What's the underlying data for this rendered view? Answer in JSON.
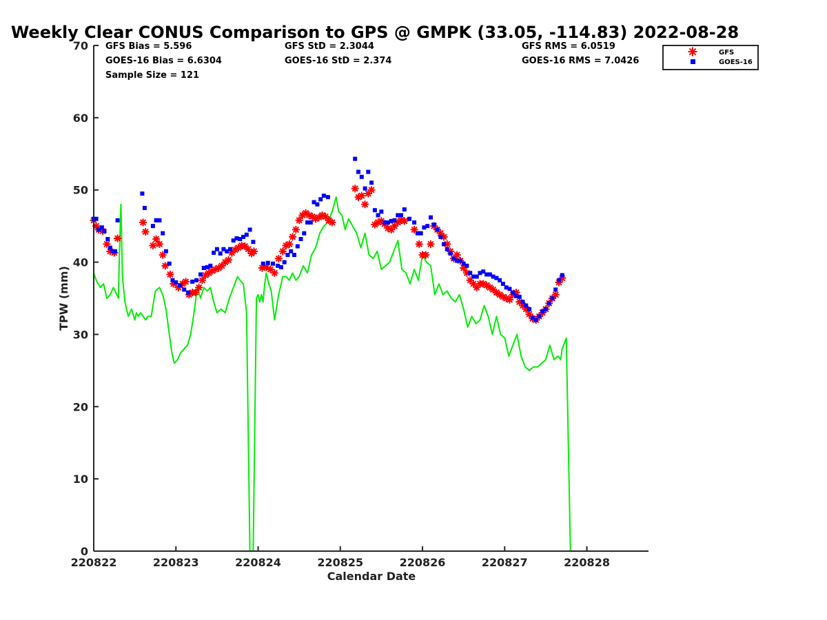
{
  "colors": {
    "gfs": "#ff0000",
    "goes": "#0000ff",
    "gps": "#00ee00",
    "axis": "#262626"
  },
  "chart_data": {
    "type": "scatter",
    "title": "Weekly Clear CONUS Comparison to GPS @ GMPK (33.05, -114.83) 2022-08-28",
    "xlabel": "Calendar Date",
    "ylabel": "TPW (mm)",
    "xlim": [
      0,
      6.75
    ],
    "ylim": [
      0,
      70
    ],
    "x_ticks": [
      0,
      1,
      2,
      3,
      4,
      5,
      6
    ],
    "x_tick_labels": [
      "220822",
      "220823",
      "220824",
      "220825",
      "220826",
      "220827",
      "220828"
    ],
    "y_ticks": [
      0,
      10,
      20,
      30,
      40,
      50,
      60,
      70
    ],
    "y_tick_labels": [
      "0",
      "10",
      "20",
      "30",
      "40",
      "50",
      "60",
      "70"
    ],
    "legend": {
      "position": "top-right",
      "entries": [
        "GFS",
        "GOES-16"
      ]
    },
    "stats": {
      "gfs_bias": "GFS Bias = 5.596",
      "goes_bias": "GOES-16 Bias = 6.6304",
      "sample_size": "Sample Size = 121",
      "gfs_std": "GFS StD = 2.3044",
      "goes_std": "GOES-16 StD = 2.374",
      "gfs_rms": "GFS RMS = 6.0519",
      "goes_rms": "GOES-16 RMS = 7.0426"
    },
    "series": [
      {
        "name": "GPS",
        "style": "line",
        "x": [
          0,
          0.03,
          0.08,
          0.12,
          0.16,
          0.2,
          0.24,
          0.28,
          0.3,
          0.31,
          0.33,
          0.35,
          0.38,
          0.42,
          0.46,
          0.5,
          0.52,
          0.54,
          0.57,
          0.6,
          0.63,
          0.66,
          0.7,
          0.75,
          0.8,
          0.84,
          0.88,
          0.92,
          0.95,
          0.98,
          1.02,
          1.06,
          1.1,
          1.14,
          1.18,
          1.22,
          1.26,
          1.3,
          1.34,
          1.38,
          1.42,
          1.46,
          1.5,
          1.55,
          1.6,
          1.65,
          1.7,
          1.75,
          1.78,
          1.82,
          1.86,
          1.9,
          1.94,
          1.98,
          2.0,
          2.02,
          2.04,
          2.06,
          2.08,
          2.1,
          2.13,
          2.16,
          2.2,
          2.25,
          2.3,
          2.34,
          2.38,
          2.42,
          2.46,
          2.5,
          2.55,
          2.6,
          2.65,
          2.7,
          2.75,
          2.8,
          2.85,
          2.9,
          2.95,
          2.98,
          3.02,
          3.06,
          3.1,
          3.15,
          3.2,
          3.25,
          3.3,
          3.35,
          3.4,
          3.45,
          3.5,
          3.55,
          3.6,
          3.65,
          3.7,
          3.75,
          3.8,
          3.85,
          3.9,
          3.95,
          4.0,
          4.05,
          4.1,
          4.15,
          4.2,
          4.25,
          4.3,
          4.35,
          4.4,
          4.45,
          4.5,
          4.55,
          4.6,
          4.65,
          4.7,
          4.75,
          4.8,
          4.85,
          4.9,
          4.95,
          5.0,
          5.05,
          5.1,
          5.15,
          5.2,
          5.25,
          5.3,
          5.35,
          5.4,
          5.45,
          5.5,
          5.55,
          5.6,
          5.65,
          5.68,
          5.7,
          5.75,
          5.8
        ],
        "y": [
          38.5,
          37.5,
          36.5,
          37,
          35,
          35.5,
          36.5,
          35.5,
          35,
          40,
          48,
          38,
          34.5,
          32.5,
          33.5,
          32,
          33,
          32.5,
          33,
          32.5,
          32,
          32.5,
          32.5,
          36,
          36.5,
          35.5,
          33.5,
          30,
          27.5,
          26,
          26.5,
          27.5,
          28,
          28.5,
          30,
          33,
          36.5,
          35,
          36.5,
          36,
          36.5,
          34.5,
          33,
          33.5,
          33,
          35,
          36.5,
          38,
          37.5,
          37,
          33,
          0,
          0,
          35,
          35.5,
          34.5,
          35.5,
          34.5,
          37,
          38.5,
          37,
          36,
          32,
          35.5,
          38,
          38,
          37.5,
          38.5,
          37.5,
          38,
          39.5,
          38.5,
          41,
          42,
          44,
          45,
          45.5,
          47,
          49,
          47,
          46.5,
          44.5,
          46,
          45,
          44,
          42,
          44,
          41,
          40.5,
          41.5,
          39,
          39.5,
          40,
          41.5,
          43,
          39,
          38.5,
          37,
          39,
          37.5,
          41,
          40,
          39.5,
          35.5,
          37,
          35.5,
          36,
          35,
          34.5,
          35.5,
          33.5,
          31,
          32.5,
          31.5,
          32,
          34,
          32.5,
          30,
          32.5,
          30,
          29.5,
          27,
          28.5,
          30,
          27,
          25.5,
          25,
          25.5,
          25.5,
          26,
          26.5,
          28.5,
          26.5,
          27,
          26.5,
          28,
          29.5,
          0
        ]
      },
      {
        "name": "GFS",
        "style": "marker-star",
        "x": [
          0.0,
          0.03,
          0.06,
          0.11,
          0.16,
          0.2,
          0.25,
          0.29,
          0.6,
          0.63,
          0.72,
          0.76,
          0.8,
          0.84,
          0.87,
          0.93,
          0.97,
          1.03,
          1.08,
          1.12,
          1.16,
          1.2,
          1.24,
          1.28,
          1.32,
          1.36,
          1.4,
          1.44,
          1.48,
          1.52,
          1.56,
          1.6,
          1.64,
          1.68,
          1.72,
          1.76,
          1.8,
          1.84,
          1.88,
          1.92,
          1.95,
          2.05,
          2.1,
          2.15,
          2.2,
          2.25,
          2.3,
          2.34,
          2.38,
          2.42,
          2.46,
          2.5,
          2.54,
          2.58,
          2.62,
          2.66,
          2.7,
          2.74,
          2.78,
          2.82,
          2.86,
          2.9,
          3.18,
          3.22,
          3.26,
          3.3,
          3.34,
          3.38,
          3.42,
          3.46,
          3.5,
          3.54,
          3.58,
          3.62,
          3.66,
          3.7,
          3.74,
          3.78,
          3.9,
          3.96,
          4.0,
          4.04,
          4.1,
          4.14,
          4.18,
          4.22,
          4.26,
          4.3,
          4.34,
          4.38,
          4.42,
          4.46,
          4.5,
          4.54,
          4.58,
          4.62,
          4.66,
          4.7,
          4.74,
          4.78,
          4.82,
          4.86,
          4.9,
          4.94,
          4.98,
          5.02,
          5.06,
          5.1,
          5.14,
          5.18,
          5.22,
          5.26,
          5.3,
          5.34,
          5.38,
          5.42,
          5.46,
          5.5,
          5.54,
          5.58,
          5.62,
          5.66,
          5.7
        ],
        "y": [
          45.8,
          45,
          44.5,
          44.3,
          42.5,
          41.5,
          41.3,
          43.3,
          45.5,
          44.2,
          42.3,
          43.2,
          42.5,
          41,
          39.5,
          38.3,
          37,
          36.5,
          37,
          37.3,
          35.5,
          35.8,
          35.8,
          36.5,
          37.5,
          38.2,
          38.5,
          38.8,
          39,
          39.2,
          39.5,
          40,
          40.3,
          41.3,
          41.7,
          42,
          42.3,
          42.2,
          41.8,
          41.2,
          41.5,
          39.2,
          39.3,
          39,
          38.5,
          40.5,
          41.5,
          42.3,
          42.5,
          43.5,
          44.5,
          45.8,
          46.5,
          46.8,
          46.5,
          46.3,
          46,
          46.2,
          46.5,
          46.3,
          45.8,
          45.5,
          50.2,
          49,
          49.2,
          48,
          49.5,
          50,
          45.2,
          45.5,
          45.7,
          45.3,
          44.7,
          44.5,
          45,
          45.5,
          45.8,
          45.7,
          44.5,
          42.5,
          41,
          41,
          42.5,
          45,
          44.5,
          44,
          43.5,
          42.5,
          41.5,
          40.5,
          41,
          40.2,
          39.2,
          38.5,
          37.5,
          37,
          36.5,
          37,
          37,
          36.8,
          36.5,
          36.2,
          35.8,
          35.5,
          35.2,
          35,
          34.8,
          35.5,
          35.8,
          34.5,
          34,
          33.5,
          32.8,
          32.2,
          32,
          32.5,
          33,
          33.5,
          34.3,
          35,
          35.5,
          37.2,
          37.8
        ]
      },
      {
        "name": "GOES-16",
        "style": "marker-square",
        "x": [
          0.0,
          0.03,
          0.06,
          0.1,
          0.13,
          0.17,
          0.2,
          0.23,
          0.26,
          0.29,
          0.59,
          0.62,
          0.72,
          0.76,
          0.8,
          0.84,
          0.88,
          0.92,
          0.96,
          1.0,
          1.05,
          1.1,
          1.15,
          1.2,
          1.25,
          1.3,
          1.34,
          1.38,
          1.42,
          1.46,
          1.5,
          1.54,
          1.58,
          1.62,
          1.66,
          1.7,
          1.74,
          1.78,
          1.82,
          1.86,
          1.9,
          1.94,
          2.06,
          2.12,
          2.18,
          2.24,
          2.28,
          2.32,
          2.36,
          2.4,
          2.44,
          2.48,
          2.52,
          2.56,
          2.6,
          2.64,
          2.68,
          2.72,
          2.76,
          2.8,
          2.85,
          3.18,
          3.22,
          3.26,
          3.3,
          3.34,
          3.38,
          3.42,
          3.46,
          3.5,
          3.54,
          3.58,
          3.62,
          3.66,
          3.7,
          3.74,
          3.78,
          3.84,
          3.9,
          3.94,
          3.98,
          4.02,
          4.06,
          4.1,
          4.14,
          4.18,
          4.22,
          4.26,
          4.3,
          4.34,
          4.38,
          4.42,
          4.46,
          4.5,
          4.54,
          4.58,
          4.62,
          4.66,
          4.7,
          4.74,
          4.78,
          4.82,
          4.86,
          4.9,
          4.94,
          4.98,
          5.02,
          5.06,
          5.1,
          5.14,
          5.18,
          5.22,
          5.26,
          5.3,
          5.34,
          5.38,
          5.42,
          5.46,
          5.5,
          5.54,
          5.58,
          5.62,
          5.66,
          5.7
        ],
        "y": [
          46,
          46,
          44.5,
          44.8,
          44.3,
          43.2,
          42,
          41.5,
          41.5,
          45.8,
          49.5,
          47.5,
          45,
          45.8,
          45.8,
          44,
          41.5,
          39.8,
          37.5,
          37.2,
          36.8,
          36.2,
          35.8,
          37.3,
          37.5,
          38.3,
          39.2,
          39.3,
          39.5,
          41.3,
          41.8,
          41.2,
          41.8,
          41.5,
          41.8,
          43,
          43.3,
          43.2,
          43.5,
          43.8,
          44.5,
          42.8,
          39.8,
          39.9,
          39.8,
          39.5,
          39.3,
          40,
          41,
          41.5,
          41,
          42.2,
          43.2,
          44,
          45.5,
          45.5,
          48.3,
          48,
          48.7,
          49.2,
          49,
          54.3,
          52.5,
          51.8,
          50.2,
          52.5,
          51,
          47.2,
          46.5,
          47,
          45.5,
          45.5,
          45.7,
          45.8,
          46.5,
          46.5,
          47.3,
          46,
          45.5,
          44,
          44,
          44.8,
          45,
          46.2,
          45.2,
          44.5,
          43.5,
          42.5,
          41.8,
          41.2,
          40.5,
          40.2,
          40.2,
          39.8,
          39.5,
          38.5,
          38,
          38,
          38.5,
          38.7,
          38.3,
          38.3,
          38,
          37.8,
          37.5,
          37,
          36.5,
          36.3,
          35.8,
          35.3,
          35.2,
          34.5,
          34,
          33.5,
          32.3,
          32,
          32.5,
          33.2,
          33.5,
          34.3,
          35,
          36.2,
          37.5,
          38.2
        ]
      }
    ]
  }
}
